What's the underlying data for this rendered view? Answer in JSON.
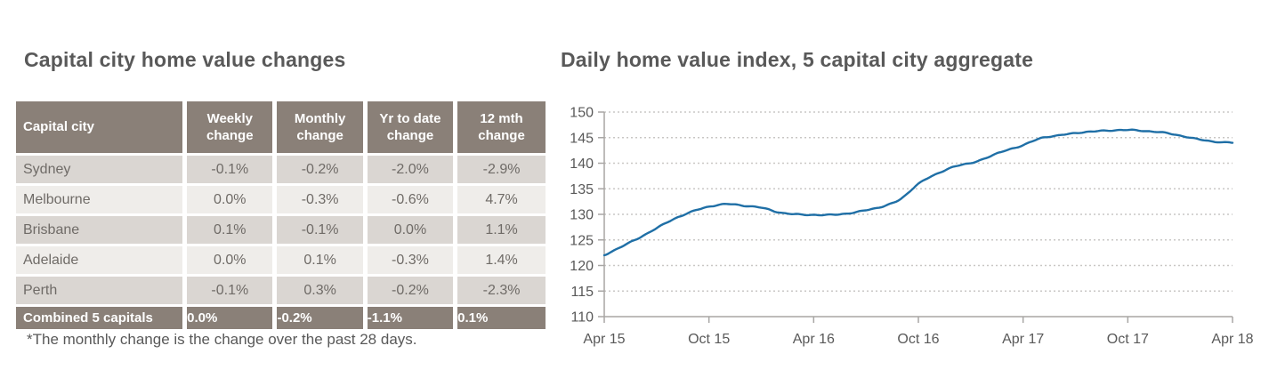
{
  "table_section": {
    "title": "Capital city home value changes",
    "columns": [
      "Capital city",
      "Weekly change",
      "Monthly change",
      "Yr to date change",
      "12 mth change"
    ],
    "rows": [
      {
        "city": "Sydney",
        "values": [
          "-0.1%",
          "-0.2%",
          "-2.0%",
          "-2.9%"
        ]
      },
      {
        "city": "Melbourne",
        "values": [
          "0.0%",
          "-0.3%",
          "-0.6%",
          "4.7%"
        ]
      },
      {
        "city": "Brisbane",
        "values": [
          "0.1%",
          "-0.1%",
          "0.0%",
          "1.1%"
        ]
      },
      {
        "city": "Adelaide",
        "values": [
          "0.0%",
          "0.1%",
          "-0.3%",
          "1.4%"
        ]
      },
      {
        "city": "Perth",
        "values": [
          "-0.1%",
          "0.3%",
          "-0.2%",
          "-2.3%"
        ]
      }
    ],
    "total_row": {
      "city": "Combined 5 capitals",
      "values": [
        "0.0%",
        "-0.2%",
        "-1.1%",
        "0.1%"
      ]
    },
    "footnote": "*The monthly change is the change over the past 28 days.",
    "colors": {
      "header_bg": "#8a8078",
      "row_dark_bg": "#dad6d2",
      "row_light_bg": "#efedea",
      "header_text": "#ffffff",
      "cell_text": "#6f6b67"
    }
  },
  "chart_section": {
    "title": "Daily home value index, 5 capital city aggregate"
  },
  "chart_data": {
    "type": "line",
    "title": "Daily home value index, 5 capital city aggregate",
    "x_tick_labels": [
      "Apr 15",
      "Oct 15",
      "Apr 16",
      "Oct 16",
      "Apr 17",
      "Oct 17",
      "Apr 18"
    ],
    "y_ticks": [
      110,
      115,
      120,
      125,
      130,
      135,
      140,
      145,
      150
    ],
    "ylim": [
      110,
      150
    ],
    "grid": "dotted-horizontal gridlines at 115-150, solid x axis at 110",
    "legend": "none",
    "series": [
      {
        "name": "5 capital city aggregate daily home value index",
        "color": "#1f6fa6",
        "x_monthly": [
          "Apr 15",
          "May 15",
          "Jun 15",
          "Jul 15",
          "Aug 15",
          "Sep 15",
          "Oct 15",
          "Nov 15",
          "Dec 15",
          "Jan 16",
          "Feb 16",
          "Mar 16",
          "Apr 16",
          "May 16",
          "Jun 16",
          "Jul 16",
          "Aug 16",
          "Sep 16",
          "Oct 16",
          "Nov 16",
          "Dec 16",
          "Jan 17",
          "Feb 17",
          "Mar 17",
          "Apr 17",
          "May 17",
          "Jun 17",
          "Jul 17",
          "Aug 17",
          "Sep 17",
          "Oct 17",
          "Nov 17",
          "Dec 17",
          "Jan 18",
          "Feb 18",
          "Mar 18",
          "Apr 18"
        ],
        "values": [
          122.0,
          123.7,
          125.4,
          127.3,
          129.1,
          130.5,
          131.5,
          132.0,
          131.7,
          131.3,
          130.4,
          130.0,
          129.9,
          129.9,
          130.2,
          130.8,
          131.6,
          133.0,
          136.0,
          137.8,
          139.3,
          140.0,
          141.2,
          142.5,
          143.5,
          144.9,
          145.4,
          145.9,
          146.2,
          146.4,
          146.5,
          146.3,
          146.0,
          145.4,
          144.7,
          144.2,
          144.0
        ]
      }
    ],
    "axis_colors": {
      "grid": "#c9c7c5",
      "axis": "#a8a6a4",
      "tick_text": "#595959"
    }
  }
}
